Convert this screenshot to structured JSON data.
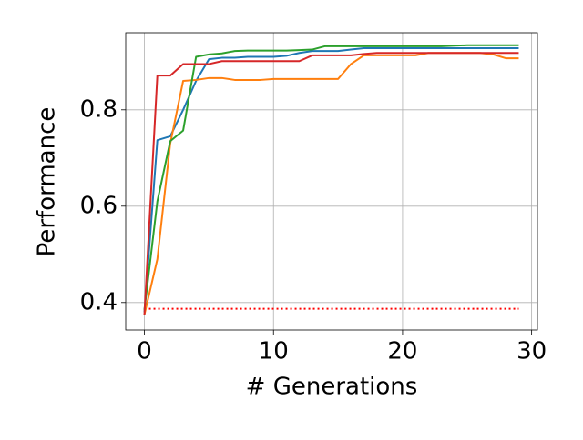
{
  "chart_data": {
    "type": "line",
    "xlabel": "# Generations",
    "ylabel": "Performance",
    "x": [
      0,
      1,
      2,
      3,
      4,
      5,
      6,
      7,
      8,
      9,
      10,
      11,
      12,
      13,
      14,
      15,
      16,
      17,
      18,
      19,
      20,
      21,
      22,
      23,
      24,
      25,
      26,
      27,
      28,
      29
    ],
    "series": [
      {
        "color": "#1f77b4",
        "values": [
          0.38,
          0.737,
          0.745,
          0.8,
          0.86,
          0.905,
          0.908,
          0.908,
          0.91,
          0.91,
          0.91,
          0.912,
          0.918,
          0.922,
          0.922,
          0.922,
          0.925,
          0.928,
          0.928,
          0.928,
          0.928,
          0.928,
          0.928,
          0.928,
          0.928,
          0.928,
          0.928,
          0.928,
          0.928,
          0.928
        ]
      },
      {
        "color": "#ff7f0e",
        "values": [
          0.375,
          0.49,
          0.73,
          0.86,
          0.862,
          0.866,
          0.866,
          0.862,
          0.862,
          0.862,
          0.864,
          0.864,
          0.864,
          0.864,
          0.864,
          0.864,
          0.895,
          0.913,
          0.913,
          0.913,
          0.913,
          0.913,
          0.918,
          0.918,
          0.918,
          0.918,
          0.918,
          0.915,
          0.907,
          0.907
        ]
      },
      {
        "color": "#2ca02c",
        "values": [
          0.385,
          0.61,
          0.735,
          0.757,
          0.91,
          0.915,
          0.917,
          0.922,
          0.923,
          0.923,
          0.923,
          0.923,
          0.924,
          0.925,
          0.932,
          0.932,
          0.932,
          0.932,
          0.932,
          0.932,
          0.932,
          0.932,
          0.932,
          0.932,
          0.933,
          0.934,
          0.934,
          0.934,
          0.934,
          0.934
        ]
      },
      {
        "color": "#d62728",
        "values": [
          0.375,
          0.871,
          0.871,
          0.895,
          0.895,
          0.895,
          0.901,
          0.901,
          0.901,
          0.901,
          0.901,
          0.901,
          0.901,
          0.913,
          0.913,
          0.913,
          0.913,
          0.916,
          0.918,
          0.918,
          0.918,
          0.918,
          0.918,
          0.918,
          0.918,
          0.918,
          0.918,
          0.918,
          0.918,
          0.918
        ]
      }
    ],
    "reference_line": {
      "value": 0.387,
      "color": "#ff0000",
      "style": "dotted"
    },
    "xlim": [
      -1.45,
      30.45
    ],
    "ylim": [
      0.343,
      0.96
    ],
    "xticks": [
      0,
      10,
      20,
      30
    ],
    "yticks": [
      0.4,
      0.6,
      0.8
    ],
    "grid": true
  }
}
